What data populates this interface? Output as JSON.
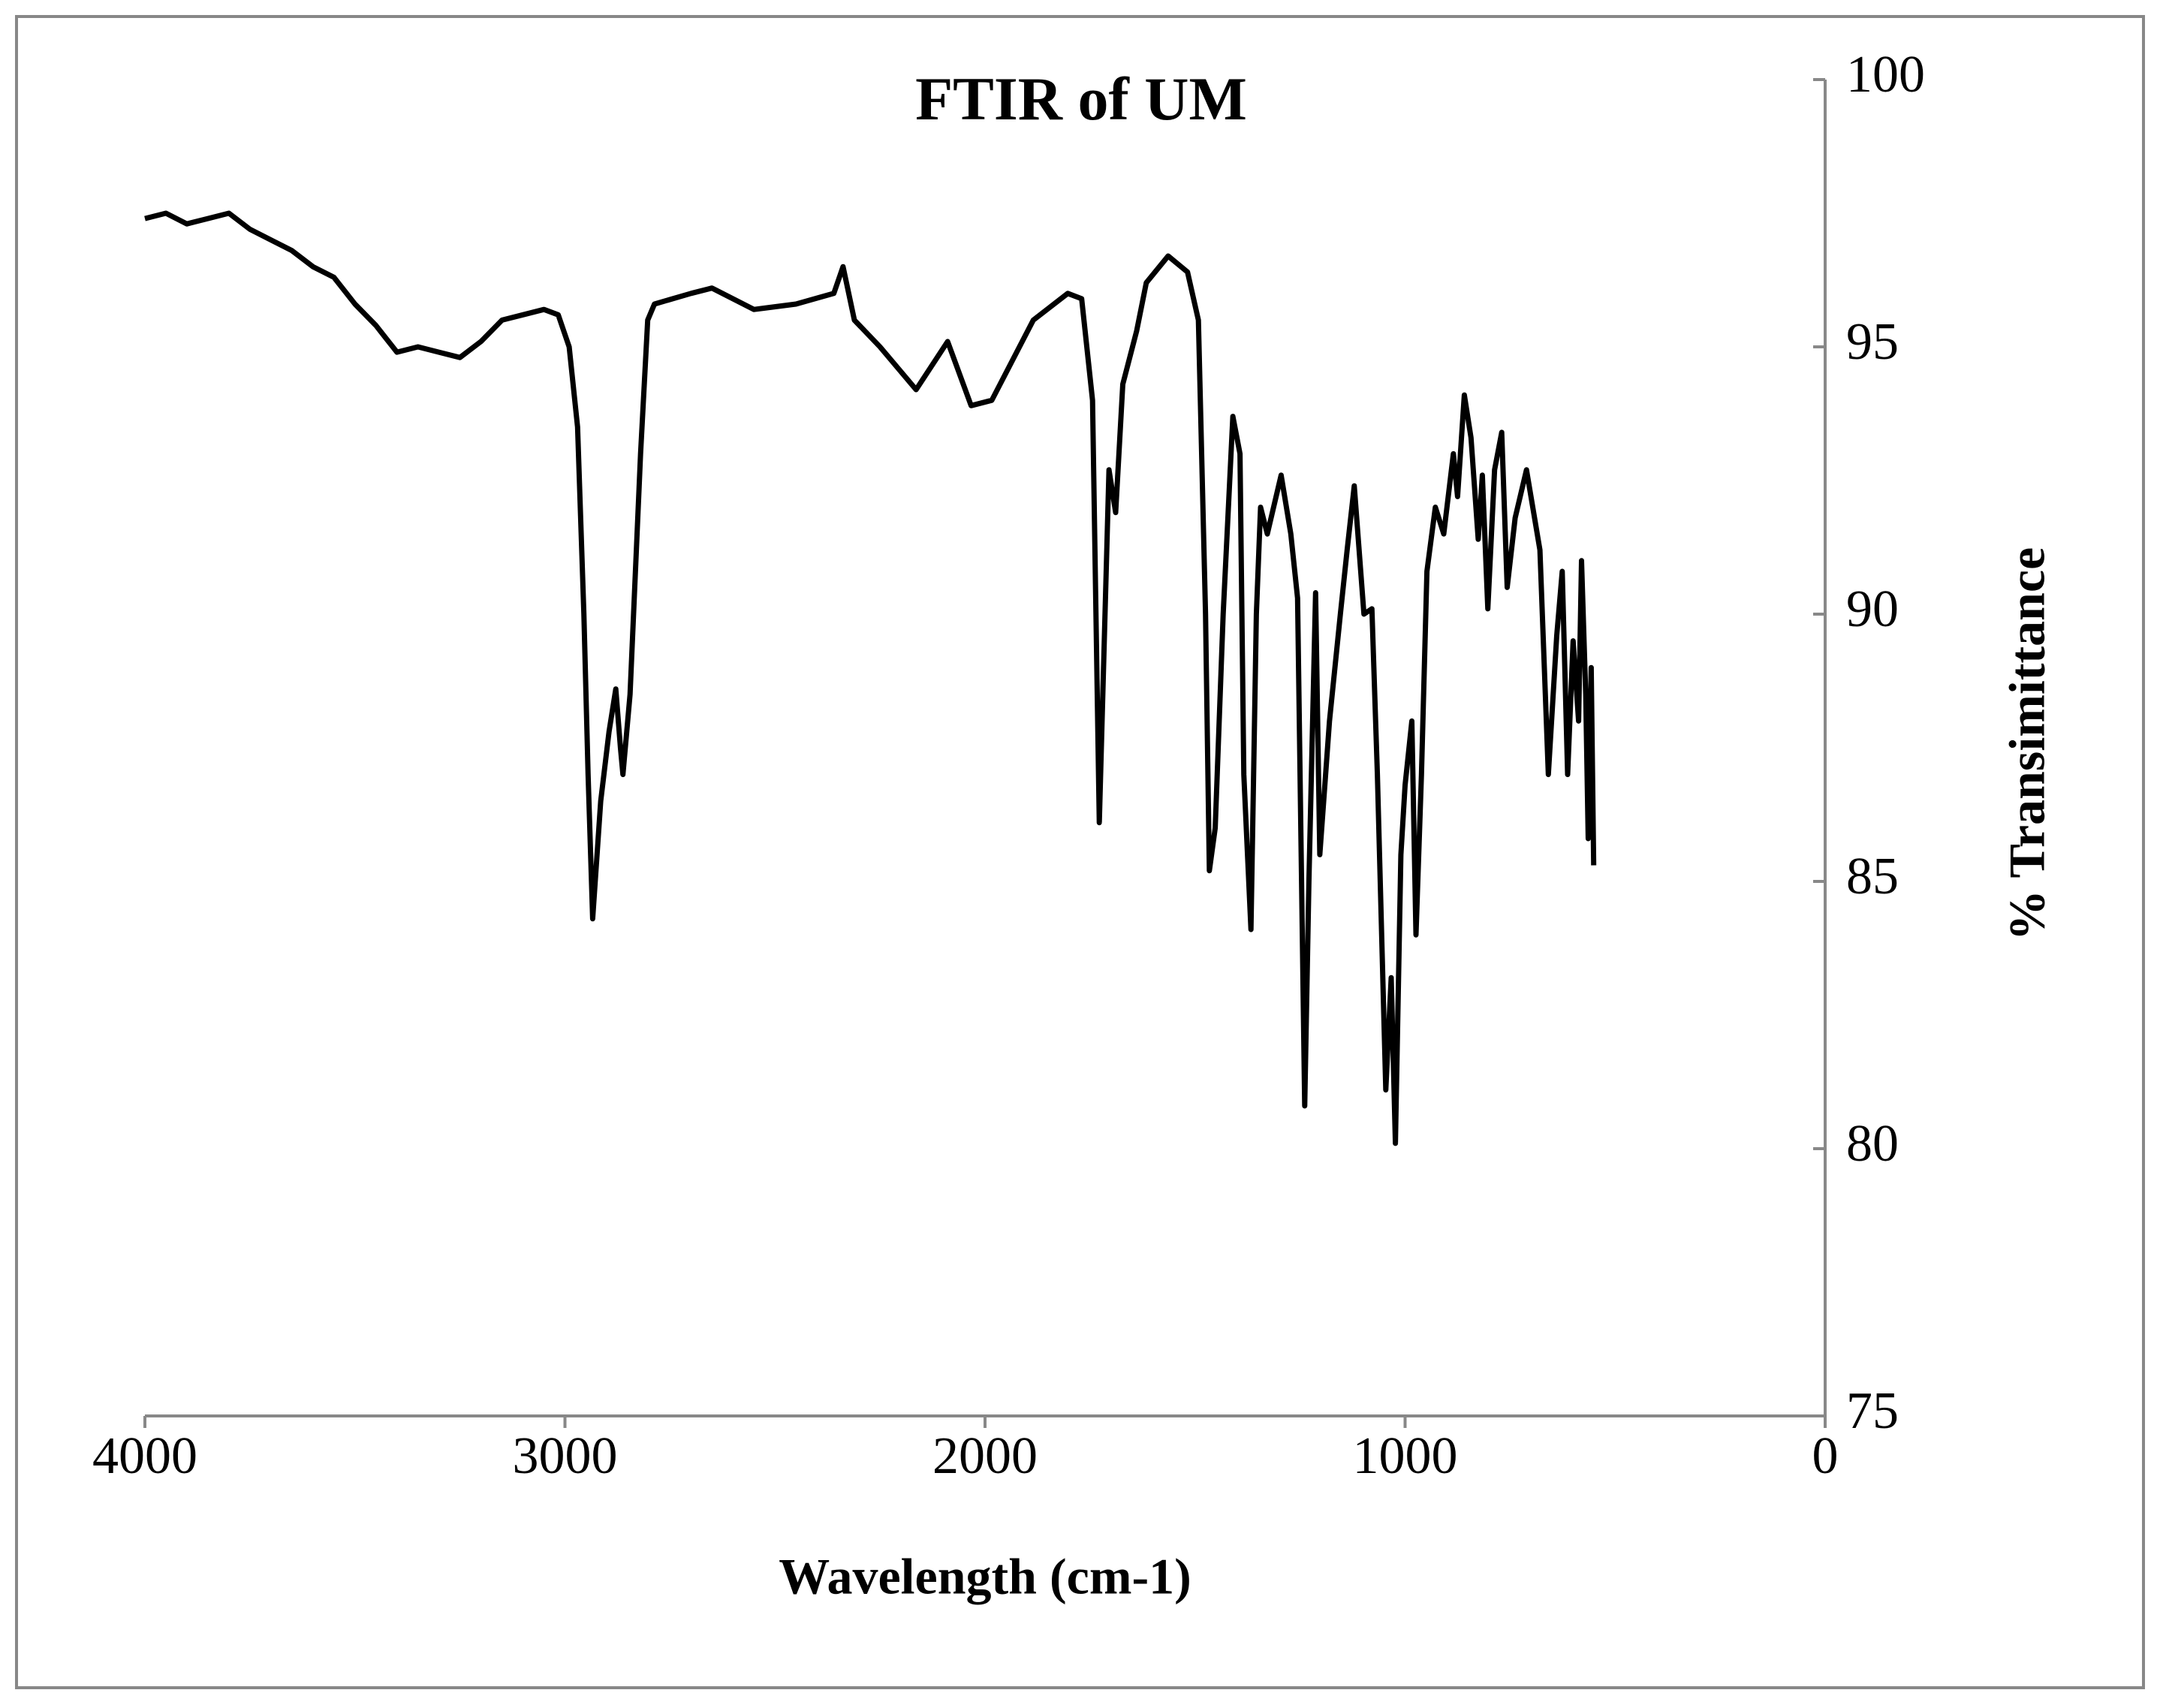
{
  "chart_data": {
    "type": "line",
    "title": "FTIR of UM",
    "xlabel": "Wavelength (cm-1)",
    "ylabel": "% Transimittance",
    "xlim": [
      4000,
      0
    ],
    "xticks": [
      4000,
      3000,
      2000,
      1000,
      0
    ],
    "ylim": [
      75,
      100
    ],
    "yticks": [
      75,
      80,
      85,
      90,
      95,
      100
    ],
    "y_axis_side": "right",
    "grid": false,
    "series": [
      {
        "name": "UM",
        "color": "#000000",
        "x": [
          4000,
          3950,
          3900,
          3850,
          3800,
          3750,
          3700,
          3650,
          3600,
          3550,
          3500,
          3450,
          3400,
          3350,
          3300,
          3250,
          3200,
          3150,
          3100,
          3050,
          3016,
          2990,
          2970,
          2955,
          2945,
          2934,
          2915,
          2895,
          2879,
          2868,
          2862,
          2845,
          2820,
          2803,
          2787,
          2700,
          2650,
          2550,
          2450,
          2360,
          2338,
          2311,
          2250,
          2164,
          2089,
          2033,
          1984,
          1885,
          1803,
          1770,
          1744,
          1728,
          1705,
          1689,
          1672,
          1639,
          1616,
          1564,
          1518,
          1492,
          1475,
          1466,
          1452,
          1433,
          1410,
          1393,
          1384,
          1367,
          1354,
          1344,
          1328,
          1295,
          1272,
          1256,
          1239,
          1229,
          1213,
          1203,
          1180,
          1154,
          1138,
          1121,
          1098,
          1079,
          1066,
          1046,
          1033,
          1023,
          1010,
          1000,
          984,
          974,
          961,
          948,
          928,
          908,
          885,
          875,
          859,
          843,
          826,
          816,
          803,
          787,
          770,
          757,
          738,
          711,
          679,
          659,
          639,
          626,
          613,
          600,
          587,
          580,
          570,
          564,
          557,
          551
        ],
        "values": [
          97.4,
          97.5,
          97.3,
          97.4,
          97.5,
          97.2,
          97.0,
          96.8,
          96.5,
          96.3,
          95.8,
          95.4,
          94.9,
          95.0,
          94.9,
          94.8,
          95.1,
          95.5,
          95.6,
          95.7,
          95.6,
          95.0,
          93.5,
          90.0,
          87.0,
          84.3,
          86.5,
          87.8,
          88.6,
          87.5,
          87.0,
          88.5,
          93.0,
          95.5,
          95.8,
          96.0,
          96.1,
          95.7,
          95.8,
          96.0,
          96.5,
          95.5,
          95.0,
          94.2,
          95.1,
          93.9,
          94.0,
          95.5,
          96.0,
          95.9,
          94.0,
          86.1,
          92.7,
          91.9,
          94.3,
          95.3,
          96.2,
          96.7,
          96.4,
          95.5,
          90.0,
          85.2,
          86.0,
          90.0,
          93.7,
          93.0,
          87.0,
          84.1,
          90.0,
          92.0,
          91.5,
          92.6,
          91.5,
          90.3,
          80.8,
          85.0,
          90.4,
          85.5,
          88.0,
          90.0,
          91.2,
          92.4,
          90.0,
          90.1,
          87.0,
          81.1,
          83.2,
          80.1,
          85.5,
          86.8,
          88.0,
          84.0,
          87.0,
          90.8,
          92.0,
          91.5,
          93.0,
          92.2,
          94.1,
          93.3,
          91.4,
          92.6,
          90.1,
          92.7,
          93.4,
          90.5,
          91.8,
          92.7,
          91.2,
          87.0,
          89.6,
          90.8,
          87.0,
          89.5,
          88.0,
          91.0,
          88.5,
          85.8,
          89.0,
          85.3
        ]
      }
    ]
  }
}
